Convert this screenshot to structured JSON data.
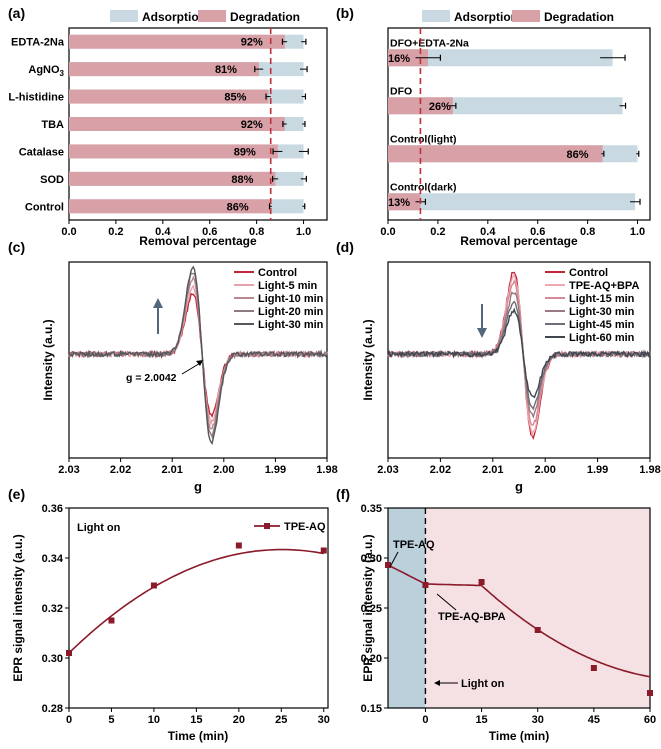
{
  "colors": {
    "adsorption": "#c9d9e2",
    "degradation": "#d8a0a7",
    "dashed": "#c0303a",
    "fit_line": "#8b1a2b",
    "marker": "#8b1a2b",
    "dark_region": "#bcd0dc",
    "light_region": "#f5e1e4"
  },
  "chart_data": [
    {
      "panel": "(a)",
      "type": "bar",
      "orientation": "horizontal",
      "stacked_overlay": true,
      "legend": [
        "Adsorption",
        "Degradation"
      ],
      "categories": [
        "EDTA-2Na",
        "AgNO3",
        "L-histidine",
        "TBA",
        "Catalase",
        "SOD",
        "Control"
      ],
      "category_labels": [
        {
          "main": "EDTA-2Na",
          "sub": ""
        },
        {
          "main": "AgNO",
          "sub": "3"
        },
        {
          "main": "L-histidine",
          "sub": ""
        },
        {
          "main": "TBA",
          "sub": ""
        },
        {
          "main": "Catalase",
          "sub": ""
        },
        {
          "main": "SOD",
          "sub": ""
        },
        {
          "main": "Control",
          "sub": ""
        }
      ],
      "series": [
        {
          "name": "Adsorption",
          "values": [
            1.0,
            1.0,
            1.0,
            1.0,
            1.0,
            1.0,
            1.0
          ],
          "errors": [
            0.01,
            0.015,
            0.008,
            0.006,
            0.02,
            0.012,
            0.005
          ]
        },
        {
          "name": "Degradation",
          "values": [
            0.92,
            0.81,
            0.85,
            0.92,
            0.89,
            0.88,
            0.86
          ],
          "errors": [
            0.01,
            0.018,
            0.01,
            0.008,
            0.02,
            0.012,
            0.005
          ]
        }
      ],
      "data_labels": [
        "92%",
        "81%",
        "85%",
        "92%",
        "89%",
        "88%",
        "86%"
      ],
      "reference_line": 0.86,
      "xlabel": "Removal percentage",
      "xlim": [
        0.0,
        1.1
      ],
      "xticks": [
        "0.0",
        "0.2",
        "0.4",
        "0.6",
        "0.8",
        "1.0"
      ]
    },
    {
      "panel": "(b)",
      "type": "bar",
      "orientation": "horizontal",
      "stacked_overlay": true,
      "legend": [
        "Adsorption",
        "Degradation"
      ],
      "categories": [
        "DFO+EDTA-2Na",
        "DFO",
        "Control(light)",
        "Control(dark)"
      ],
      "series": [
        {
          "name": "Adsorption",
          "values": [
            0.9,
            0.94,
            1.0,
            0.99
          ],
          "errors": [
            0.05,
            0.012,
            0.005,
            0.02
          ]
        },
        {
          "name": "Degradation",
          "values": [
            0.16,
            0.26,
            0.86,
            0.13
          ],
          "errors": [
            0.05,
            0.012,
            0.005,
            0.02
          ]
        }
      ],
      "data_labels": [
        "16%",
        "26%",
        "86%",
        "13%"
      ],
      "reference_line": 0.13,
      "xlabel": "Removal percentage",
      "xlim": [
        0.0,
        1.05
      ],
      "xticks": [
        "0.0",
        "0.2",
        "0.4",
        "0.6",
        "0.8",
        "1.0"
      ]
    },
    {
      "panel": "(c)",
      "type": "line",
      "legend": [
        "Control",
        "Light-5 min",
        "Light-10 min",
        "Light-20 min",
        "Light-30 min"
      ],
      "series_colors": [
        "#c0283a",
        "#e4a3ab",
        "#b9888e",
        "#8f7a7e",
        "#55575c"
      ],
      "peak_amplitudes": [
        0.66,
        0.74,
        0.82,
        0.9,
        0.96
      ],
      "annotation": "g = 2.0042",
      "arrow_direction": "up",
      "xlabel": "g",
      "ylabel": "Intensity (a.u.)",
      "xlim": [
        2.03,
        1.98
      ],
      "xticks": [
        "2.03",
        "2.02",
        "2.01",
        "2.00",
        "1.99",
        "1.98"
      ]
    },
    {
      "panel": "(d)",
      "type": "line",
      "legend": [
        "Control",
        "TPE-AQ+BPA",
        "Light-15 min",
        "Light-30 min",
        "Light-45 min",
        "Light-60 min"
      ],
      "series_colors": [
        "#c0283a",
        "#f0a9b2",
        "#d58a96",
        "#9a7a82",
        "#6f6e74",
        "#3f4650"
      ],
      "peak_amplitudes": [
        0.9,
        0.86,
        0.78,
        0.68,
        0.58,
        0.48
      ],
      "arrow_direction": "down",
      "xlabel": "g",
      "ylabel": "Intensity (a.u.)",
      "xlim": [
        2.03,
        1.98
      ],
      "xticks": [
        "2.03",
        "2.02",
        "2.01",
        "2.00",
        "1.99",
        "1.98"
      ]
    },
    {
      "panel": "(e)",
      "type": "scatter",
      "legend": [
        "TPE-AQ"
      ],
      "annotation": "Light on",
      "x": [
        0,
        5,
        10,
        20,
        30
      ],
      "y": [
        0.302,
        0.315,
        0.329,
        0.345,
        0.343
      ],
      "fit_curve": true,
      "xlabel": "Time (min)",
      "ylabel": "EPR signal intensity (a.u.)",
      "xlim": [
        0,
        30.5
      ],
      "ylim": [
        0.28,
        0.36
      ],
      "xticks": [
        "0",
        "5",
        "10",
        "15",
        "20",
        "25",
        "30"
      ],
      "yticks": [
        "0.28",
        "0.30",
        "0.32",
        "0.34",
        "0.36"
      ]
    },
    {
      "panel": "(f)",
      "type": "scatter",
      "annotations": [
        "TPE-AQ",
        "TPE-AQ-BPA",
        "Light on"
      ],
      "x": [
        -10,
        0,
        15,
        30,
        45,
        60
      ],
      "y": [
        0.293,
        0.273,
        0.276,
        0.228,
        0.19,
        0.165
      ],
      "fit_curve": true,
      "dark_region": [
        -10,
        0
      ],
      "light_region": [
        0,
        60
      ],
      "xlabel": "Time (min)",
      "ylabel": "EPR signal intensity (a.u.)",
      "xlim": [
        -10,
        60
      ],
      "ylim": [
        0.15,
        0.35
      ],
      "xticks": [
        "0",
        "15",
        "30",
        "45",
        "60"
      ],
      "yticks": [
        "0.15",
        "0.20",
        "0.25",
        "0.30",
        "0.35"
      ]
    }
  ]
}
